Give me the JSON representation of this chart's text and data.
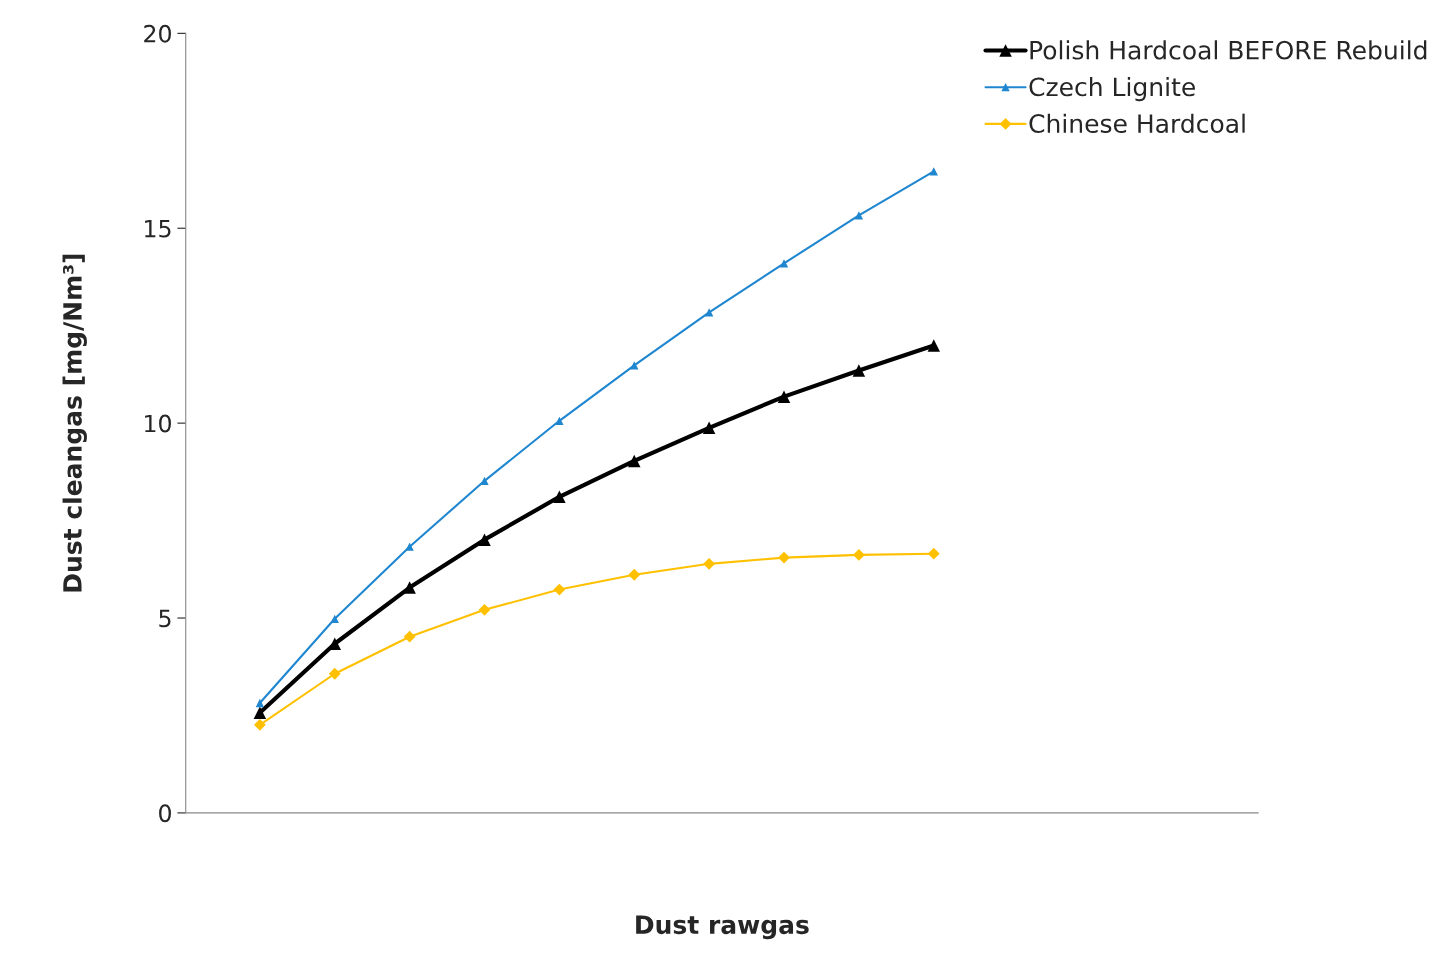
{
  "chart_data": {
    "type": "line",
    "xlabel": "Dust rawgas",
    "ylabel": "Dust cleangas [mg/Nm³]",
    "categories": [
      null,
      null,
      null,
      null,
      null,
      null,
      null,
      null,
      null,
      null
    ],
    "ylim": [
      0,
      20
    ],
    "yticks": [
      0,
      5,
      10,
      15,
      20
    ],
    "grid": false,
    "legend": "top right",
    "series": [
      {
        "name": "Polish Hardcoal BEFORE Rebuild",
        "color": "#000000",
        "marker": "triangle",
        "values": [
          2.57,
          4.34,
          5.78,
          7.01,
          8.11,
          9.03,
          9.88,
          10.68,
          11.35,
          11.99
        ]
      },
      {
        "name": "Czech Lignite",
        "color": "#1f86d0",
        "marker": "triangle",
        "values": [
          2.82,
          4.98,
          6.83,
          8.52,
          10.06,
          11.48,
          12.84,
          14.1,
          15.33,
          16.46
        ]
      },
      {
        "name": "Chinese Hardcoal",
        "color": "#ffc000",
        "marker": "diamond",
        "values": [
          2.26,
          3.57,
          4.52,
          5.21,
          5.73,
          6.11,
          6.39,
          6.55,
          6.62,
          6.65
        ]
      }
    ]
  }
}
